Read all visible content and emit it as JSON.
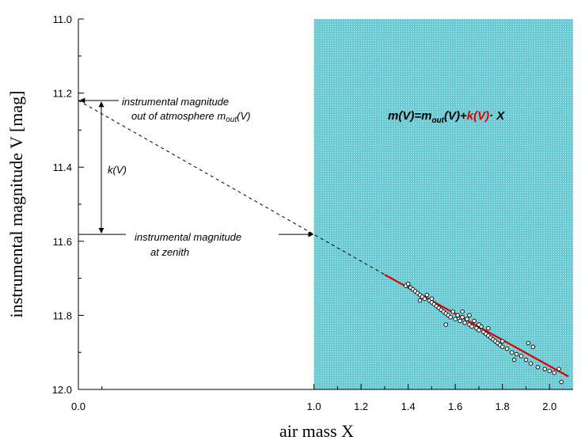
{
  "chart_data": {
    "type": "scatter",
    "xlabel": "air mass X",
    "ylabel": "instrumental magnitude V [mag]",
    "xlim": [
      0,
      2.1
    ],
    "ylim": [
      12.0,
      11.0
    ],
    "y_inverted": true,
    "x_ticks": [
      0.0,
      1.0,
      1.2,
      1.4,
      1.6,
      1.8,
      2.0
    ],
    "x_tick_labels": [
      "0.0",
      "1.0",
      "1.2",
      "1.4",
      "1.6",
      "1.8",
      "2.0"
    ],
    "y_ticks": [
      11.0,
      11.2,
      11.4,
      11.6,
      11.8,
      12.0
    ],
    "y_tick_labels": [
      "11.0",
      "11.2",
      "11.4",
      "11.6",
      "11.8",
      "12.0"
    ],
    "shaded_region": {
      "x": [
        1.0,
        2.1
      ],
      "color": "#39b8c4"
    },
    "fit_line": {
      "color": "#e00000",
      "x": [
        1.3,
        2.08
      ],
      "y": [
        11.69,
        11.965
      ]
    },
    "extrapolation_line": {
      "x": [
        0.0,
        1.3
      ],
      "y": [
        11.22,
        11.69
      ]
    },
    "series": [
      {
        "points": [
          [
            1.39,
            11.72
          ],
          [
            1.4,
            11.715
          ],
          [
            1.41,
            11.725
          ],
          [
            1.42,
            11.73
          ],
          [
            1.43,
            11.735
          ],
          [
            1.44,
            11.74
          ],
          [
            1.45,
            11.745
          ],
          [
            1.46,
            11.75
          ],
          [
            1.47,
            11.755
          ],
          [
            1.48,
            11.745
          ],
          [
            1.49,
            11.76
          ],
          [
            1.5,
            11.765
          ],
          [
            1.51,
            11.77
          ],
          [
            1.52,
            11.775
          ],
          [
            1.53,
            11.78
          ],
          [
            1.54,
            11.785
          ],
          [
            1.55,
            11.79
          ],
          [
            1.56,
            11.795
          ],
          [
            1.57,
            11.8
          ],
          [
            1.58,
            11.805
          ],
          [
            1.59,
            11.79
          ],
          [
            1.6,
            11.81
          ],
          [
            1.61,
            11.8
          ],
          [
            1.62,
            11.815
          ],
          [
            1.63,
            11.805
          ],
          [
            1.64,
            11.82
          ],
          [
            1.65,
            11.81
          ],
          [
            1.66,
            11.825
          ],
          [
            1.67,
            11.83
          ],
          [
            1.68,
            11.815
          ],
          [
            1.69,
            11.835
          ],
          [
            1.7,
            11.84
          ],
          [
            1.71,
            11.83
          ],
          [
            1.72,
            11.845
          ],
          [
            1.73,
            11.85
          ],
          [
            1.74,
            11.855
          ],
          [
            1.75,
            11.86
          ],
          [
            1.76,
            11.865
          ],
          [
            1.77,
            11.87
          ],
          [
            1.78,
            11.875
          ],
          [
            1.79,
            11.88
          ],
          [
            1.8,
            11.885
          ],
          [
            1.82,
            11.89
          ],
          [
            1.84,
            11.9
          ],
          [
            1.86,
            11.905
          ],
          [
            1.88,
            11.91
          ],
          [
            1.9,
            11.92
          ],
          [
            1.92,
            11.93
          ],
          [
            1.95,
            11.94
          ],
          [
            1.98,
            11.945
          ],
          [
            2.0,
            11.95
          ],
          [
            2.02,
            11.955
          ],
          [
            2.05,
            11.98
          ],
          [
            1.63,
            11.79
          ],
          [
            1.56,
            11.825
          ],
          [
            1.91,
            11.875
          ],
          [
            1.93,
            11.885
          ],
          [
            1.85,
            11.92
          ],
          [
            2.04,
            11.945
          ],
          [
            1.45,
            11.76
          ],
          [
            1.5,
            11.755
          ],
          [
            1.7,
            11.825
          ],
          [
            1.74,
            11.835
          ],
          [
            1.8,
            11.87
          ],
          [
            1.66,
            11.8
          ]
        ]
      }
    ],
    "annotations": [
      {
        "text": "instrumental magnitude",
        "ref": "mout-line1"
      },
      {
        "text": "out of atmosphere m",
        "sub": "out",
        "tail": "(V)",
        "ref": "mout-line2"
      },
      {
        "text": "k(V)",
        "ref": "kv"
      },
      {
        "text": "instrumental magnitude",
        "ref": "zenith-line1"
      },
      {
        "text": "at zenith",
        "ref": "zenith-line2"
      }
    ],
    "formula": {
      "prefix": "m(V)=m",
      "sub": "out",
      "middle": "(V)+",
      "red": "k(V)",
      "suffix": "· X"
    }
  }
}
